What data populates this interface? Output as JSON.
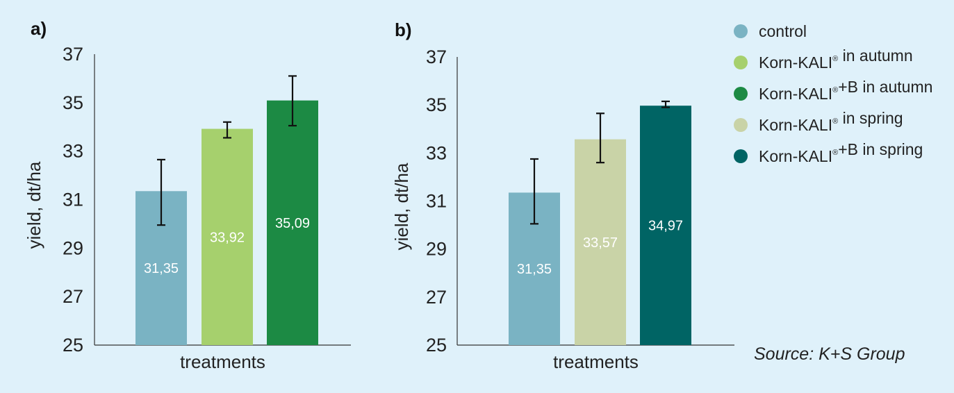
{
  "chart_data": [
    {
      "type": "bar",
      "panel_label": "a)",
      "xlabel": "treatments",
      "ylabel": "yield, dt/ha",
      "ylim": [
        25,
        37
      ],
      "yticks": [
        25,
        27,
        29,
        31,
        33,
        35,
        37
      ],
      "series": [
        {
          "name": "control",
          "value": 31.35,
          "label": "31,35",
          "error_low": 29.95,
          "error_high": 32.65,
          "color": "#7ab3c3"
        },
        {
          "name": "Korn-KALI® in autumn",
          "value": 33.92,
          "label": "33,92",
          "error_low": 33.55,
          "error_high": 34.2,
          "color": "#a6d06d"
        },
        {
          "name": "Korn-KALI®+B in autumn",
          "value": 35.09,
          "label": "35,09",
          "error_low": 34.05,
          "error_high": 36.1,
          "color": "#1c8a44"
        }
      ]
    },
    {
      "type": "bar",
      "panel_label": "b)",
      "xlabel": "treatments",
      "ylabel": "yield, dt/ha",
      "ylim": [
        25,
        37
      ],
      "yticks": [
        25,
        27,
        29,
        31,
        33,
        35,
        37
      ],
      "series": [
        {
          "name": "control",
          "value": 31.35,
          "label": "31,35",
          "error_low": 30.05,
          "error_high": 32.75,
          "color": "#7ab3c3"
        },
        {
          "name": "Korn-KALI® in spring",
          "value": 33.57,
          "label": "33,57",
          "error_low": 32.6,
          "error_high": 34.65,
          "color": "#c9d3a7"
        },
        {
          "name": "Korn-KALI®+B in spring",
          "value": 34.97,
          "label": "34,97",
          "error_low": 34.9,
          "error_high": 35.15,
          "color": "#006464"
        }
      ]
    }
  ],
  "legend": {
    "placement": "top-right",
    "items": [
      {
        "label": "control",
        "color": "#7ab3c3"
      },
      {
        "label": "Korn-KALI® in autumn",
        "color": "#a6d06d"
      },
      {
        "label": "Korn-KALI®+B in autumn",
        "color": "#1c8a44"
      },
      {
        "label": "Korn-KALI® in spring",
        "color": "#c9d3a7"
      },
      {
        "label": "Korn-KALI®+B in spring",
        "color": "#006464"
      }
    ]
  },
  "source": "Source: K+S Group"
}
